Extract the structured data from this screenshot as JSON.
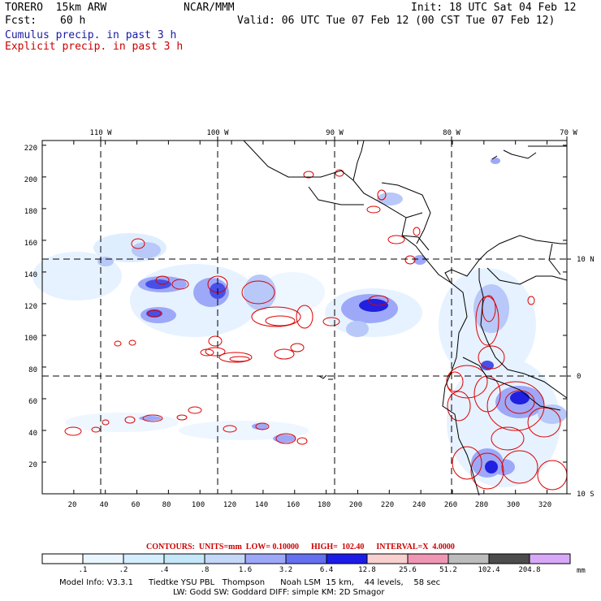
{
  "header": {
    "model": "TORERO  15km ARW",
    "org": "NCAR/MMM",
    "init": "Init: 18 UTC Sat 04 Feb 12",
    "fcst_label": "Fcst:",
    "fcst_hours": "60 h",
    "valid": "Valid: 06 UTC Tue 07 Feb 12 (00 CST Tue 07 Feb 12)",
    "title1": "Cumulus precip. in past 3 h",
    "title2": "Explicit precip. in past 3 h",
    "title1_color": "#1a1aa6",
    "title2_color": "#cc0000"
  },
  "map": {
    "lon_labels": [
      "110 W",
      "100 W",
      "90 W",
      "80 W",
      "70 W"
    ],
    "lat_labels": [
      "10 N",
      "0",
      "10 S"
    ],
    "x_ticks": [
      "20",
      "40",
      "60",
      "80",
      "100",
      "120",
      "140",
      "160",
      "180",
      "200",
      "220",
      "240",
      "260",
      "280",
      "300",
      "320"
    ],
    "y_ticks": [
      "20",
      "40",
      "60",
      "80",
      "100",
      "120",
      "140",
      "160",
      "180",
      "200",
      "220"
    ]
  },
  "contours_line": "CONTOURS:  UNITS=mm  LOW= 0.10000      HIGH=  102.40      INTERVAL=X  4.0000",
  "colorbar": {
    "labels": [
      ".1",
      ".2",
      ".4",
      ".8",
      "1.6",
      "3.2",
      "6.4",
      "12.8",
      "25.6",
      "51.2",
      "102.4",
      "204.8"
    ],
    "unit": "mm",
    "colors": [
      "#ffffff",
      "#eaf6ff",
      "#d4eeff",
      "#c4e8f8",
      "#c4d8f8",
      "#9ea8f8",
      "#6470f0",
      "#1c1ce8",
      "#f8d0d0",
      "#f096b4",
      "#bcbcbc",
      "#4c4c4c",
      "#d8a8f8"
    ]
  },
  "footer": {
    "line1": "Model Info: V3.3.1      Tiedtke YSU PBL   Thompson      Noah LSM  15 km,    44 levels,    58 sec",
    "line2": "LW: Godd SW: Goddard DIFF: simple KM: 2D Smagor"
  }
}
